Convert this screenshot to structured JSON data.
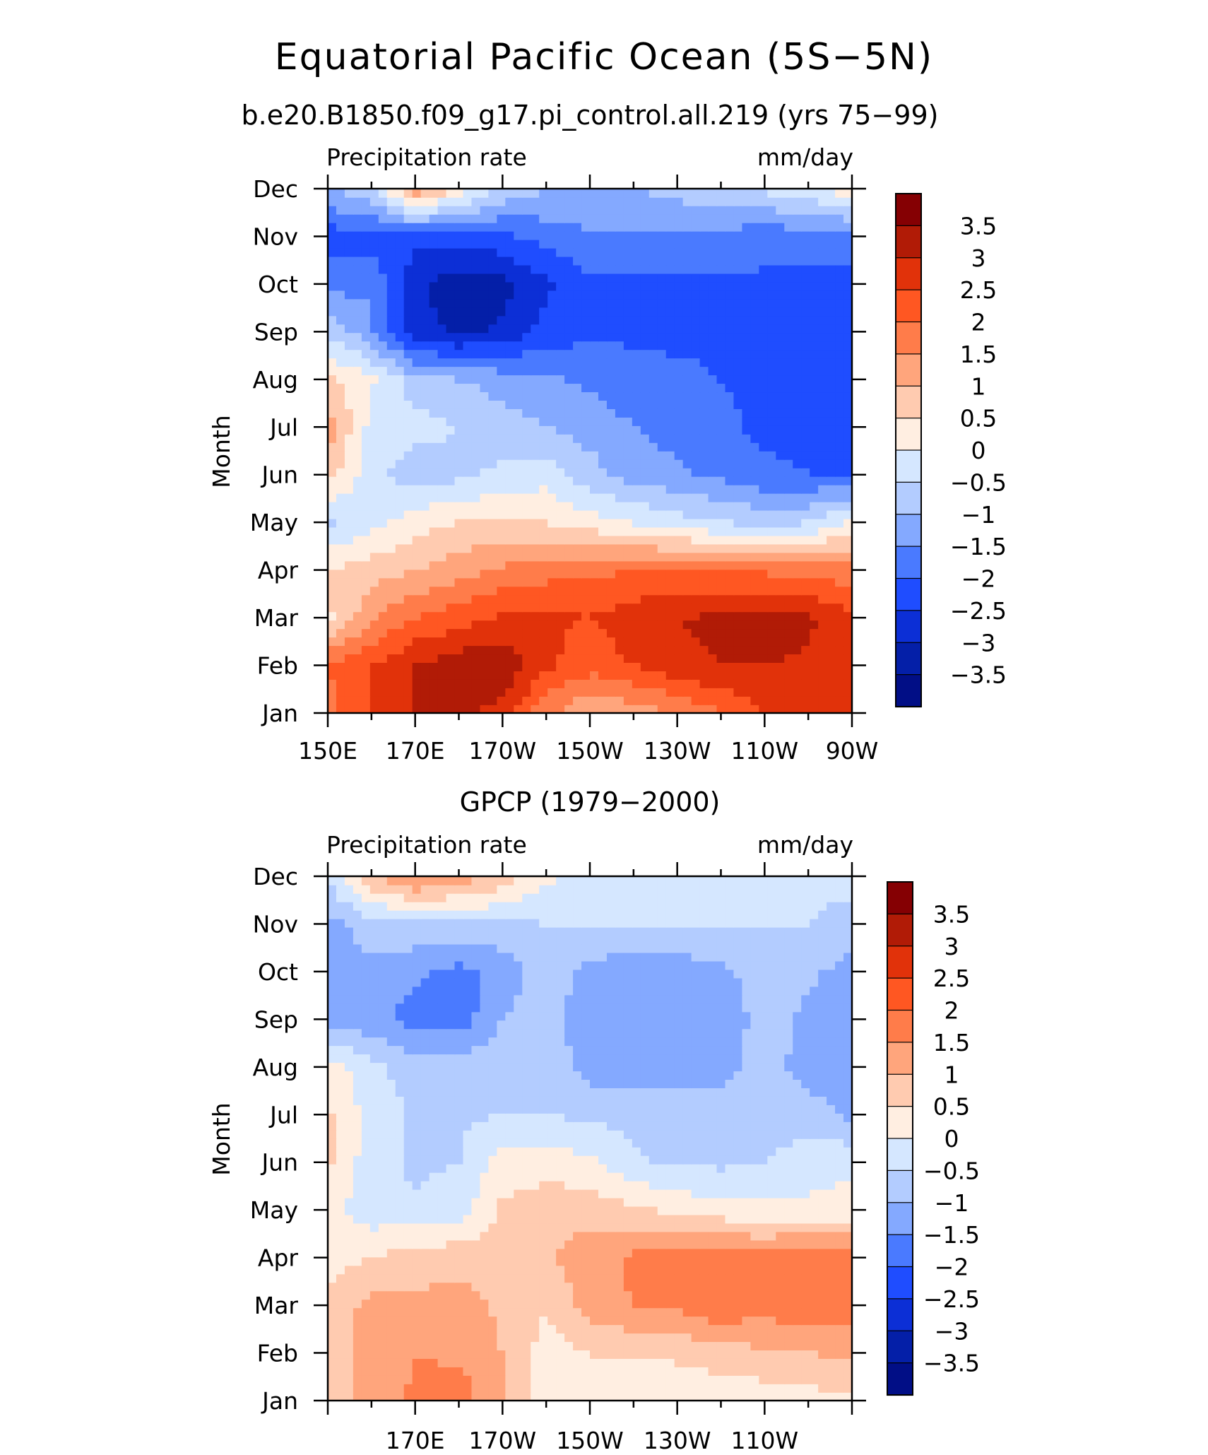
{
  "figure": {
    "title": "Equatorial Pacific Ocean (5S−5N)"
  },
  "colorbar": {
    "levels": [
      "3.5",
      "3",
      "2.5",
      "2",
      "1.5",
      "1",
      "0.5",
      "0",
      "−0.5",
      "−1",
      "−1.5",
      "−2",
      "−2.5",
      "−3",
      "−3.5"
    ],
    "colors": [
      "#850003",
      "#b11b06",
      "#e1320a",
      "#ff5722",
      "#ff7c4a",
      "#ffa57c",
      "#ffcbb0",
      "#ffeee1",
      "#d5e7ff",
      "#b3ccff",
      "#84a9ff",
      "#4a7aff",
      "#1f4dff",
      "#0c2fd6",
      "#041fa8",
      "#010e86"
    ]
  },
  "chart_data": [
    {
      "type": "heatmap",
      "title": "b.e20.B1850.f09_g17.pi_control.all.219 (yrs 75−99)",
      "left_label": "Precipitation rate",
      "right_label": "mm/day",
      "ylabel": "Month",
      "x_tick_labels": [
        "150E",
        "170E",
        "170W",
        "150W",
        "130W",
        "110W",
        "90W"
      ],
      "y_tick_labels": [
        "Jan",
        "Feb",
        "Mar",
        "Apr",
        "May",
        "Jun",
        "Jul",
        "Aug",
        "Sep",
        "Oct",
        "Nov",
        "Dec"
      ],
      "xlim": [
        150,
        270
      ],
      "ylim": [
        1,
        12
      ],
      "x_longitudes": [
        150,
        160,
        170,
        180,
        190,
        200,
        210,
        220,
        230,
        240,
        250,
        260,
        270
      ],
      "months": [
        1,
        2,
        3,
        4,
        5,
        6,
        7,
        8,
        9,
        10,
        11,
        12
      ],
      "values": [
        [
          1.8,
          2.6,
          3.0,
          3.1,
          2.8,
          1.6,
          1.0,
          1.2,
          1.5,
          2.0,
          2.5,
          2.6,
          2.6
        ],
        [
          2.0,
          2.5,
          3.0,
          3.3,
          3.4,
          2.6,
          2.2,
          2.5,
          2.9,
          3.0,
          3.0,
          2.9,
          2.8
        ],
        [
          0.4,
          1.4,
          2.0,
          2.3,
          2.6,
          2.6,
          2.5,
          2.8,
          3.0,
          3.1,
          3.3,
          3.1,
          2.6
        ],
        [
          0.5,
          0.8,
          1.0,
          1.3,
          1.6,
          1.8,
          1.9,
          2.0,
          2.0,
          2.0,
          1.9,
          1.8,
          1.7
        ],
        [
          -0.6,
          -0.2,
          0.3,
          0.5,
          0.6,
          0.5,
          0.2,
          0.0,
          -0.3,
          -0.5,
          -0.6,
          -0.5,
          0.1
        ],
        [
          0.7,
          -0.3,
          -0.8,
          -0.6,
          -0.4,
          -0.2,
          -0.8,
          -1.2,
          -1.4,
          -1.6,
          -1.9,
          -2.0,
          -2.0
        ],
        [
          1.3,
          -0.2,
          -0.3,
          -0.5,
          -0.8,
          -1.0,
          -1.2,
          -1.5,
          -1.7,
          -1.9,
          -2.1,
          -2.1,
          -2.1
        ],
        [
          0.6,
          0.1,
          -0.8,
          -1.0,
          -1.2,
          -1.4,
          -1.6,
          -1.8,
          -1.9,
          -2.0,
          -2.1,
          -2.1,
          -2.1
        ],
        [
          -0.6,
          -1.4,
          -2.8,
          -3.1,
          -2.9,
          -2.3,
          -2.1,
          -2.1,
          -2.1,
          -2.1,
          -2.1,
          -2.1,
          -2.1
        ],
        [
          -1.7,
          -1.6,
          -2.9,
          -3.3,
          -3.2,
          -2.6,
          -2.1,
          -2.1,
          -2.1,
          -2.1,
          -2.1,
          -2.1,
          -2.1
        ],
        [
          -2.3,
          -2.2,
          -2.3,
          -2.3,
          -2.1,
          -1.8,
          -1.6,
          -1.6,
          -1.6,
          -1.7,
          -1.8,
          -1.8,
          -1.8
        ],
        [
          -1.0,
          -0.6,
          1.5,
          0.4,
          -0.6,
          -1.0,
          -1.0,
          -1.0,
          -0.8,
          -0.6,
          -0.4,
          -0.2,
          0.4
        ]
      ]
    },
    {
      "type": "heatmap",
      "title": "GPCP (1979−2000)",
      "left_label": "Precipitation rate",
      "right_label": "mm/day",
      "ylabel": "Month",
      "x_tick_labels": [
        "170E",
        "170W",
        "150W",
        "130W",
        "110W"
      ],
      "y_tick_labels": [
        "Jan",
        "Feb",
        "Mar",
        "Apr",
        "May",
        "Jun",
        "Jul",
        "Aug",
        "Sep",
        "Oct",
        "Nov",
        "Dec"
      ],
      "xlim": [
        150,
        270
      ],
      "ylim": [
        1,
        12
      ],
      "x_longitudes": [
        150,
        160,
        170,
        180,
        190,
        200,
        210,
        220,
        230,
        240,
        250,
        260,
        270
      ],
      "months": [
        1,
        2,
        3,
        4,
        5,
        6,
        7,
        8,
        9,
        10,
        11,
        12
      ],
      "values": [
        [
          0.8,
          1.2,
          1.6,
          1.8,
          1.0,
          0.2,
          0.2,
          0.1,
          0.1,
          0.1,
          0.2,
          0.3,
          0.4
        ],
        [
          0.8,
          1.2,
          1.5,
          1.4,
          1.0,
          0.3,
          0.5,
          0.6,
          0.6,
          0.8,
          0.9,
          1.0,
          1.1
        ],
        [
          0.6,
          1.2,
          1.1,
          1.2,
          0.9,
          0.5,
          1.2,
          1.5,
          1.6,
          1.9,
          1.7,
          1.9,
          1.8
        ],
        [
          0.3,
          0.5,
          0.8,
          0.8,
          0.8,
          0.9,
          1.3,
          1.6,
          1.8,
          1.9,
          1.7,
          1.9,
          1.8
        ],
        [
          0.2,
          -0.3,
          -0.4,
          -0.2,
          0.6,
          0.8,
          0.8,
          0.6,
          0.4,
          0.2,
          0.1,
          0.1,
          0.2
        ],
        [
          0.6,
          -0.3,
          -0.6,
          -0.5,
          0.2,
          0.3,
          0.1,
          -0.4,
          -0.6,
          -0.6,
          -0.5,
          -0.2,
          -0.1
        ],
        [
          0.6,
          -0.2,
          -0.6,
          -0.6,
          -0.5,
          -0.5,
          -0.6,
          -0.7,
          -0.7,
          -0.7,
          -0.7,
          -0.8,
          -1.1
        ],
        [
          0.3,
          -0.4,
          -0.7,
          -0.7,
          -0.7,
          -0.7,
          -1.2,
          -1.3,
          -1.3,
          -1.2,
          -0.8,
          -1.2,
          -1.3
        ],
        [
          -1.2,
          -1.3,
          -1.7,
          -1.8,
          -1.0,
          -0.8,
          -1.3,
          -1.4,
          -1.4,
          -1.3,
          -0.8,
          -1.1,
          -1.4
        ],
        [
          -1.3,
          -1.2,
          -1.4,
          -1.7,
          -1.3,
          -0.7,
          -1.2,
          -1.3,
          -1.3,
          -1.1,
          -0.8,
          -0.9,
          -1.2
        ],
        [
          -1.2,
          -0.7,
          -0.6,
          -0.6,
          -0.6,
          -0.5,
          -0.5,
          -0.5,
          -0.5,
          -0.5,
          -0.5,
          -0.5,
          -0.7
        ],
        [
          -0.4,
          0.9,
          1.6,
          1.3,
          0.8,
          0.1,
          -0.2,
          -0.3,
          -0.2,
          -0.4,
          -0.4,
          -0.4,
          -0.3
        ]
      ]
    }
  ]
}
